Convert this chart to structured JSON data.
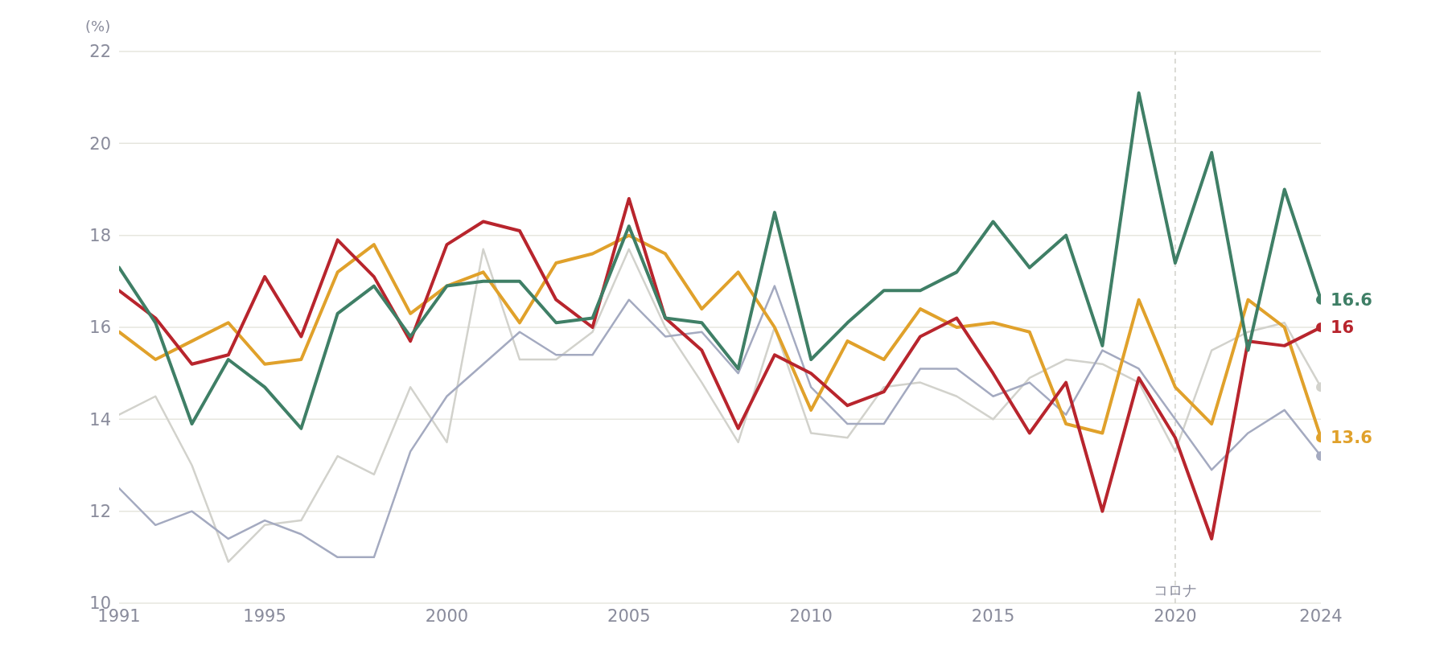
{
  "chart_data": {
    "type": "line",
    "ylabel": "(%)",
    "x": [
      1991,
      1992,
      1993,
      1994,
      1995,
      1996,
      1997,
      1998,
      1999,
      2000,
      2001,
      2002,
      2003,
      2004,
      2005,
      2006,
      2007,
      2008,
      2009,
      2010,
      2011,
      2012,
      2013,
      2014,
      2015,
      2016,
      2017,
      2018,
      2019,
      2020,
      2021,
      2022,
      2023,
      2024
    ],
    "xlim": [
      1991,
      2024
    ],
    "xticks": [
      1991,
      1995,
      2000,
      2005,
      2010,
      2015,
      2020,
      2024
    ],
    "ylim": [
      10,
      22
    ],
    "yticks": [
      10,
      12,
      14,
      16,
      18,
      20,
      22
    ],
    "grid": "y",
    "line_style": "solid",
    "ref_lines": [
      {
        "axis": "x",
        "value": 2020,
        "label": "コロナ",
        "color": "#cfcfc8",
        "line_style": "dashed"
      }
    ],
    "series": [
      {
        "color": "#d2d2cc",
        "values": [
          14.1,
          14.5,
          13.0,
          10.9,
          11.7,
          11.8,
          13.2,
          12.8,
          14.7,
          13.5,
          17.7,
          15.3,
          15.3,
          15.9,
          17.7,
          16.0,
          14.8,
          13.5,
          16.0,
          13.7,
          13.6,
          14.7,
          14.8,
          14.5,
          14.0,
          14.9,
          15.3,
          15.2,
          14.8,
          13.3,
          15.5,
          15.9,
          16.1,
          14.7
        ]
      },
      {
        "color": "#a4aac0",
        "values": [
          12.5,
          11.7,
          12.0,
          11.4,
          11.8,
          11.5,
          11.0,
          11.0,
          13.3,
          14.5,
          15.2,
          15.9,
          15.4,
          15.4,
          16.6,
          15.8,
          15.9,
          15.0,
          16.9,
          14.7,
          13.9,
          13.9,
          15.1,
          15.1,
          14.5,
          14.8,
          14.1,
          15.5,
          15.1,
          14.0,
          12.9,
          13.7,
          14.2,
          13.2
        ]
      },
      {
        "color": "#e0a12b",
        "values": [
          15.9,
          15.3,
          15.7,
          16.1,
          15.2,
          15.3,
          17.2,
          17.8,
          16.3,
          16.9,
          17.2,
          16.1,
          17.4,
          17.6,
          18.0,
          17.6,
          16.4,
          17.2,
          16.0,
          14.2,
          15.7,
          15.3,
          16.4,
          16.0,
          16.1,
          15.9,
          13.9,
          13.7,
          16.6,
          14.7,
          13.9,
          16.6,
          16.0,
          13.6
        ],
        "value_labels": [
          null,
          null,
          null,
          null,
          null,
          null,
          null,
          null,
          null,
          null,
          null,
          null,
          null,
          null,
          null,
          null,
          null,
          null,
          null,
          null,
          null,
          null,
          null,
          null,
          null,
          null,
          null,
          null,
          null,
          null,
          null,
          null,
          null,
          "13.6"
        ]
      },
      {
        "color": "#b8252d",
        "values": [
          16.8,
          16.2,
          15.2,
          15.4,
          17.1,
          15.8,
          17.9,
          17.1,
          15.7,
          17.8,
          18.3,
          18.1,
          16.6,
          16.0,
          18.8,
          16.2,
          15.5,
          13.8,
          15.4,
          15.0,
          14.3,
          14.6,
          15.8,
          16.2,
          15.0,
          13.7,
          14.8,
          12.0,
          14.9,
          13.6,
          11.4,
          15.7,
          15.6,
          16.0
        ],
        "value_labels": [
          null,
          null,
          null,
          null,
          null,
          null,
          null,
          null,
          null,
          null,
          null,
          null,
          null,
          null,
          null,
          null,
          null,
          null,
          null,
          null,
          null,
          null,
          null,
          null,
          null,
          null,
          null,
          null,
          null,
          null,
          null,
          null,
          null,
          "16"
        ]
      },
      {
        "color": "#3f7f66",
        "values": [
          17.3,
          16.1,
          13.9,
          15.3,
          14.7,
          13.8,
          16.3,
          16.9,
          15.8,
          16.9,
          17.0,
          17.0,
          16.1,
          16.2,
          18.2,
          16.2,
          16.1,
          15.1,
          18.5,
          15.3,
          16.1,
          16.8,
          16.8,
          17.2,
          18.3,
          17.3,
          18.0,
          15.6,
          21.1,
          17.4,
          19.8,
          15.5,
          19.0,
          16.6
        ],
        "value_labels": [
          null,
          null,
          null,
          null,
          null,
          null,
          null,
          null,
          null,
          null,
          null,
          null,
          null,
          null,
          null,
          null,
          null,
          null,
          null,
          null,
          null,
          null,
          null,
          null,
          null,
          null,
          null,
          null,
          null,
          null,
          null,
          null,
          null,
          "16.6"
        ]
      }
    ]
  }
}
